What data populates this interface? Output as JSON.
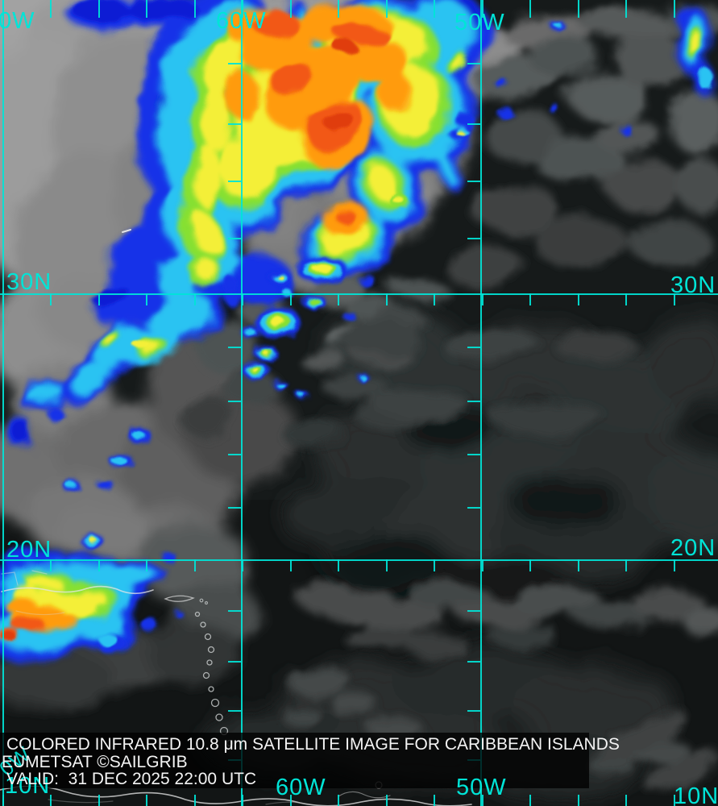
{
  "satellite_view": {
    "caption": {
      "line1": "COLORED INFRARED 10.8 μm SATELLITE IMAGE FOR CARIBBEAN ISLANDS",
      "line2": "EUMETSAT ©SAILGRIB",
      "line3": "VALID:  31 DEC 2025 22:00 UTC"
    },
    "caption_fields": {
      "product": "COLORED INFRARED 10.8 μm SATELLITE IMAGE",
      "region": "CARIBBEAN ISLANDS",
      "source": "EUMETSAT",
      "brand": "SAILGRIB",
      "valid_utc": "31 DEC 2025 22:00 UTC"
    },
    "grid_labels": {
      "top_70w_partial": "0W",
      "top_60w": "60W",
      "top_50w": "50W",
      "left_30n": "30N",
      "right_30n": "30N",
      "left_20n": "20N",
      "right_20n": "20N",
      "bottom_70w_partial": "0W",
      "bottom_10n_left": "10N",
      "bottom_60w": "60W",
      "bottom_50w": "50W",
      "bottom_10n_right": "10N"
    },
    "colors": {
      "grid_cyan": "#00e4d7",
      "caption_white": "#f4f4f4",
      "ir_cold_red": "#e03c08",
      "ir_deep_orange": "#f25816",
      "ir_orange": "#ff9b07",
      "ir_yellow": "#f4ef38",
      "ir_green": "#86e033",
      "ir_cyan": "#2cc3f2",
      "ir_blue": "#1233e8",
      "ir_deep_blue": "#0a1cd4",
      "cloud_light_gray": "#a2a2a2",
      "ocean_dark": "#161a1a"
    }
  }
}
